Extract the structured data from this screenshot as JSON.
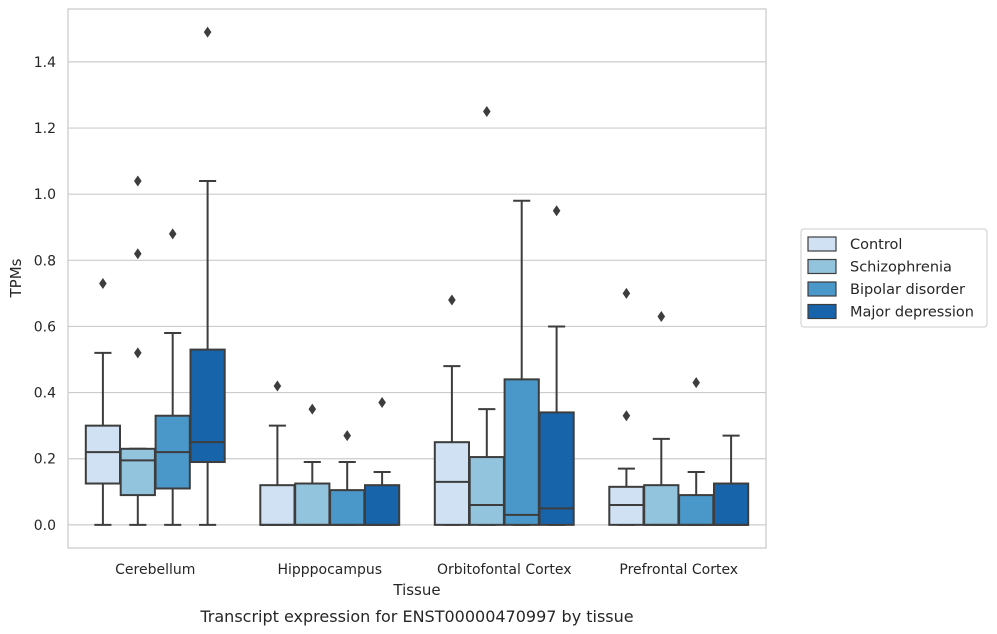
{
  "chart_data": {
    "type": "box",
    "title": "",
    "caption": "Transcript expression for ENST00000470997 by tissue",
    "xlabel": "Tissue",
    "ylabel": "TPMs",
    "ylim": [
      -0.07,
      1.56
    ],
    "yticks": [
      0.0,
      0.2,
      0.4,
      0.6,
      0.8,
      1.0,
      1.2,
      1.4
    ],
    "ytick_labels": [
      "0.0",
      "0.2",
      "0.4",
      "0.6",
      "0.8",
      "1.0",
      "1.2",
      "1.4"
    ],
    "grid": "horizontal",
    "legend_placement": "right",
    "categories": [
      "Cerebellum",
      "Hipppocampus",
      "Orbitofontal Cortex",
      "Prefrontal Cortex"
    ],
    "series": [
      {
        "name": "Control",
        "color": "#cfe1f2",
        "boxes": [
          {
            "q1": 0.125,
            "median": 0.22,
            "q3": 0.3,
            "whisker_low": 0.0,
            "whisker_high": 0.52,
            "outliers": [
              0.73
            ]
          },
          {
            "q1": 0.0,
            "median": 0.0,
            "q3": 0.12,
            "whisker_low": 0.0,
            "whisker_high": 0.3,
            "outliers": [
              0.42
            ]
          },
          {
            "q1": 0.0,
            "median": 0.13,
            "q3": 0.25,
            "whisker_low": 0.0,
            "whisker_high": 0.48,
            "outliers": [
              0.68
            ]
          },
          {
            "q1": 0.0,
            "median": 0.06,
            "q3": 0.115,
            "whisker_low": 0.0,
            "whisker_high": 0.17,
            "outliers": [
              0.33,
              0.7
            ]
          }
        ]
      },
      {
        "name": "Schizophrenia",
        "color": "#93c4de",
        "boxes": [
          {
            "q1": 0.09,
            "median": 0.195,
            "q3": 0.23,
            "whisker_low": 0.0,
            "whisker_high": 0.23,
            "outliers": [
              0.52,
              0.82,
              1.04
            ]
          },
          {
            "q1": 0.0,
            "median": 0.0,
            "q3": 0.125,
            "whisker_low": 0.0,
            "whisker_high": 0.19,
            "outliers": [
              0.35
            ]
          },
          {
            "q1": 0.0,
            "median": 0.06,
            "q3": 0.205,
            "whisker_low": 0.0,
            "whisker_high": 0.35,
            "outliers": [
              1.25
            ]
          },
          {
            "q1": 0.0,
            "median": 0.0,
            "q3": 0.12,
            "whisker_low": 0.0,
            "whisker_high": 0.26,
            "outliers": [
              0.63
            ]
          }
        ]
      },
      {
        "name": "Bipolar disorder",
        "color": "#4a98c9",
        "boxes": [
          {
            "q1": 0.11,
            "median": 0.22,
            "q3": 0.33,
            "whisker_low": 0.0,
            "whisker_high": 0.58,
            "outliers": [
              0.88
            ]
          },
          {
            "q1": 0.0,
            "median": 0.0,
            "q3": 0.105,
            "whisker_low": 0.0,
            "whisker_high": 0.19,
            "outliers": [
              0.27
            ]
          },
          {
            "q1": 0.0,
            "median": 0.03,
            "q3": 0.44,
            "whisker_low": 0.0,
            "whisker_high": 0.98,
            "outliers": []
          },
          {
            "q1": 0.0,
            "median": 0.0,
            "q3": 0.09,
            "whisker_low": 0.0,
            "whisker_high": 0.16,
            "outliers": [
              0.43
            ]
          }
        ]
      },
      {
        "name": "Major depression",
        "color": "#1764ab",
        "boxes": [
          {
            "q1": 0.19,
            "median": 0.25,
            "q3": 0.53,
            "whisker_low": 0.0,
            "whisker_high": 1.04,
            "outliers": [
              1.49
            ]
          },
          {
            "q1": 0.0,
            "median": 0.0,
            "q3": 0.12,
            "whisker_low": 0.0,
            "whisker_high": 0.16,
            "outliers": [
              0.37
            ]
          },
          {
            "q1": 0.0,
            "median": 0.05,
            "q3": 0.34,
            "whisker_low": 0.0,
            "whisker_high": 0.6,
            "outliers": [
              0.95
            ]
          },
          {
            "q1": 0.0,
            "median": 0.0,
            "q3": 0.125,
            "whisker_low": 0.0,
            "whisker_high": 0.27,
            "outliers": []
          }
        ]
      }
    ]
  }
}
